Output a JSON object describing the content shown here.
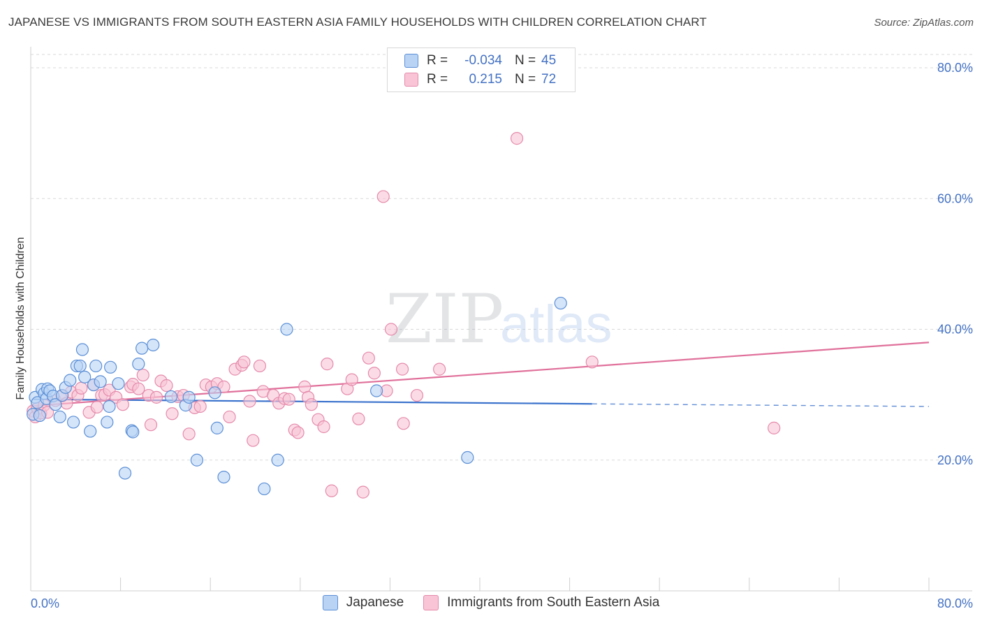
{
  "title": "JAPANESE VS IMMIGRANTS FROM SOUTH EASTERN ASIA FAMILY HOUSEHOLDS WITH CHILDREN CORRELATION CHART",
  "source": "Source: ZipAtlas.com",
  "watermark": {
    "zip": "ZIP",
    "atlas": "atlas"
  },
  "colors": {
    "japanese_fill": "#b9d3f5",
    "japanese_stroke": "#5b8fd6",
    "japanese_line": "#3a72cc",
    "sea_fill": "#f8c4d6",
    "sea_stroke": "#e58aab",
    "sea_line": "#e0709a",
    "tick_text": "#4472c4",
    "grid": "#d9d9d9"
  },
  "legend": {
    "rows": [
      {
        "r_label": "R =",
        "r_value": "-0.034",
        "n_label": "N =",
        "n_value": "45"
      },
      {
        "r_label": "R =",
        "r_value": "0.215",
        "n_label": "N =",
        "n_value": "72"
      }
    ]
  },
  "bottom_legend": {
    "japanese": "Japanese",
    "sea": "Immigrants from South Eastern Asia"
  },
  "chart_data": {
    "type": "scatter",
    "title": "JAPANESE VS IMMIGRANTS FROM SOUTH EASTERN ASIA FAMILY HOUSEHOLDS WITH CHILDREN CORRELATION CHART",
    "xlabel": "",
    "ylabel": "Family Households with Children",
    "xlim": [
      0,
      80
    ],
    "ylim": [
      0,
      82
    ],
    "x_tick_labels": [
      "0.0%",
      "80.0%"
    ],
    "y_tick_labels": [
      "20.0%",
      "40.0%",
      "60.0%",
      "80.0%"
    ],
    "y_ticks": [
      20,
      40,
      60,
      80
    ],
    "grid": true,
    "legend_placement": "top-center",
    "series": [
      {
        "name": "Japanese",
        "r": -0.034,
        "n": 45,
        "trend": {
          "x0": 0.2,
          "y0": 29.3,
          "x1": 50,
          "y1": 28.6,
          "dash_to_x": 80,
          "dash_to_y": 28.2
        },
        "points": [
          [
            0.2,
            27.0
          ],
          [
            0.4,
            29.6
          ],
          [
            0.6,
            28.8
          ],
          [
            0.8,
            26.8
          ],
          [
            1.0,
            30.8
          ],
          [
            1.2,
            30.2
          ],
          [
            1.4,
            29.4
          ],
          [
            1.5,
            30.9
          ],
          [
            1.7,
            30.6
          ],
          [
            2.0,
            29.8
          ],
          [
            2.2,
            28.5
          ],
          [
            2.6,
            26.6
          ],
          [
            2.8,
            29.9
          ],
          [
            3.1,
            31.1
          ],
          [
            3.5,
            32.2
          ],
          [
            3.8,
            25.8
          ],
          [
            4.1,
            34.4
          ],
          [
            4.4,
            34.4
          ],
          [
            4.6,
            36.9
          ],
          [
            4.8,
            32.7
          ],
          [
            5.3,
            24.4
          ],
          [
            5.6,
            31.5
          ],
          [
            5.8,
            34.4
          ],
          [
            6.2,
            32.0
          ],
          [
            6.8,
            25.8
          ],
          [
            7.0,
            28.2
          ],
          [
            7.1,
            34.2
          ],
          [
            7.8,
            31.7
          ],
          [
            8.4,
            18.0
          ],
          [
            9.0,
            24.5
          ],
          [
            9.1,
            24.3
          ],
          [
            9.6,
            34.7
          ],
          [
            9.9,
            37.1
          ],
          [
            10.9,
            37.6
          ],
          [
            12.5,
            29.7
          ],
          [
            13.8,
            28.4
          ],
          [
            14.1,
            29.6
          ],
          [
            14.8,
            20.0
          ],
          [
            16.4,
            30.3
          ],
          [
            16.6,
            24.9
          ],
          [
            17.2,
            17.4
          ],
          [
            20.8,
            15.6
          ],
          [
            22.0,
            20.0
          ],
          [
            22.8,
            40.0
          ],
          [
            30.8,
            30.6
          ],
          [
            38.9,
            20.4
          ],
          [
            47.2,
            44.0
          ]
        ]
      },
      {
        "name": "Immigrants from South Eastern Asia",
        "r": 0.215,
        "n": 72,
        "trend": {
          "x0": 0.2,
          "y0": 28.3,
          "x1": 80,
          "y1": 38.0
        },
        "points": [
          [
            0.2,
            27.5
          ],
          [
            0.4,
            26.6
          ],
          [
            0.6,
            27.9
          ],
          [
            0.9,
            27.2
          ],
          [
            1.2,
            28.4
          ],
          [
            1.5,
            27.3
          ],
          [
            2.2,
            29.1
          ],
          [
            2.8,
            29.8
          ],
          [
            3.2,
            28.7
          ],
          [
            3.6,
            30.4
          ],
          [
            4.2,
            29.9
          ],
          [
            4.5,
            31.0
          ],
          [
            5.2,
            27.3
          ],
          [
            5.6,
            31.5
          ],
          [
            5.9,
            28.1
          ],
          [
            6.3,
            29.9
          ],
          [
            6.6,
            30.0
          ],
          [
            7.0,
            30.7
          ],
          [
            7.6,
            29.6
          ],
          [
            8.2,
            28.5
          ],
          [
            8.9,
            31.2
          ],
          [
            9.1,
            31.6
          ],
          [
            9.6,
            30.9
          ],
          [
            10.0,
            33.0
          ],
          [
            10.5,
            29.9
          ],
          [
            10.7,
            25.4
          ],
          [
            11.2,
            29.6
          ],
          [
            11.6,
            32.1
          ],
          [
            12.1,
            31.4
          ],
          [
            12.6,
            27.1
          ],
          [
            13.1,
            29.7
          ],
          [
            13.6,
            29.9
          ],
          [
            14.1,
            24.0
          ],
          [
            14.6,
            28.0
          ],
          [
            15.1,
            28.2
          ],
          [
            15.6,
            31.5
          ],
          [
            16.1,
            31.2
          ],
          [
            16.6,
            31.7
          ],
          [
            17.2,
            31.2
          ],
          [
            17.7,
            26.6
          ],
          [
            18.2,
            33.9
          ],
          [
            18.8,
            34.5
          ],
          [
            19.0,
            35.0
          ],
          [
            19.5,
            29.0
          ],
          [
            19.8,
            23.0
          ],
          [
            20.4,
            34.4
          ],
          [
            20.7,
            30.5
          ],
          [
            21.6,
            29.9
          ],
          [
            22.1,
            28.7
          ],
          [
            22.6,
            29.4
          ],
          [
            23.0,
            29.3
          ],
          [
            23.5,
            24.6
          ],
          [
            23.8,
            24.2
          ],
          [
            24.4,
            31.2
          ],
          [
            24.7,
            29.6
          ],
          [
            25.0,
            28.5
          ],
          [
            25.6,
            26.2
          ],
          [
            26.1,
            25.1
          ],
          [
            26.4,
            34.7
          ],
          [
            26.8,
            15.3
          ],
          [
            28.2,
            30.9
          ],
          [
            28.6,
            32.3
          ],
          [
            29.2,
            26.3
          ],
          [
            29.6,
            15.1
          ],
          [
            30.1,
            35.6
          ],
          [
            30.6,
            33.3
          ],
          [
            31.4,
            60.3
          ],
          [
            31.7,
            30.6
          ],
          [
            32.1,
            40.0
          ],
          [
            33.1,
            33.9
          ],
          [
            33.2,
            25.6
          ],
          [
            34.4,
            29.9
          ],
          [
            36.4,
            33.9
          ],
          [
            43.3,
            69.2
          ],
          [
            50.0,
            35.0
          ],
          [
            66.2,
            24.9
          ]
        ]
      }
    ]
  }
}
